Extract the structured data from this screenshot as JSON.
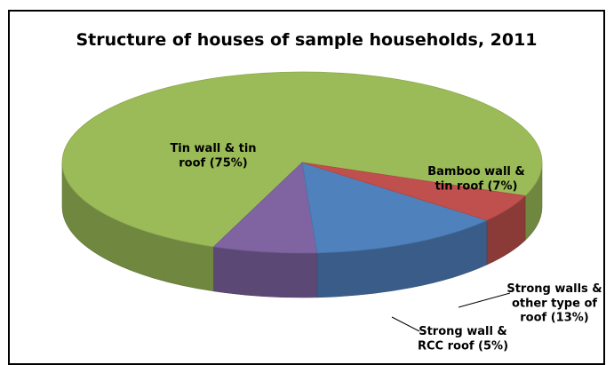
{
  "chart_data": {
    "type": "pie",
    "title": "Structure of houses of sample households, 2011",
    "slices": [
      {
        "label_lines": [
          "Tin wall & tin",
          "roof (75%)"
        ],
        "value": 75,
        "color": "#9bbb59"
      },
      {
        "label_lines": [
          "Bamboo wall &",
          "tin roof (7%)"
        ],
        "value": 7,
        "color": "#8064a2"
      },
      {
        "label_lines": [
          "Strong walls &",
          "other type of",
          "roof (13%)"
        ],
        "value": 13,
        "color": "#4f81bd"
      },
      {
        "label_lines": [
          "Strong wall &",
          "RCC roof  (5%)"
        ],
        "value": 5,
        "color": "#c0504d"
      }
    ],
    "legend": "none",
    "style": "3d-pie"
  }
}
